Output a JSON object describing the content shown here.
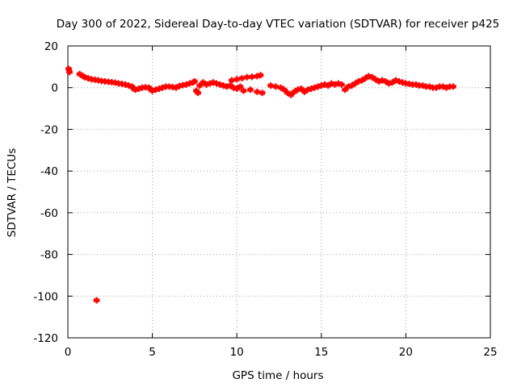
{
  "chart_data": {
    "type": "scatter",
    "title": "Day 300 of 2022, Sidereal Day-to-day VTEC variation (SDTVAR) for receiver p425",
    "xlabel": "GPS time / hours",
    "ylabel": "SDTVAR / TECUs",
    "xlim": [
      0,
      25
    ],
    "ylim": [
      -120,
      20
    ],
    "xticks": [
      0,
      5,
      10,
      15,
      20,
      25
    ],
    "yticks": [
      20,
      0,
      -20,
      -40,
      -60,
      -80,
      -100,
      -120
    ],
    "grid": true,
    "marker_color": "#ff0000",
    "series": [
      {
        "name": "SDTVAR",
        "marker": "plus",
        "points": [
          [
            0.05,
            9.0
          ],
          [
            0.1,
            7.5
          ],
          [
            0.7,
            6.5
          ],
          [
            0.9,
            5.5
          ],
          [
            1.0,
            5.0
          ],
          [
            1.2,
            4.5
          ],
          [
            1.4,
            4.0
          ],
          [
            1.6,
            3.8
          ],
          [
            1.8,
            3.5
          ],
          [
            2.0,
            3.2
          ],
          [
            2.2,
            3.0
          ],
          [
            2.4,
            2.8
          ],
          [
            2.6,
            2.6
          ],
          [
            2.8,
            2.4
          ],
          [
            3.0,
            2.0
          ],
          [
            3.2,
            1.8
          ],
          [
            3.4,
            1.5
          ],
          [
            3.6,
            1.0
          ],
          [
            3.8,
            0.5
          ],
          [
            3.9,
            -0.5
          ],
          [
            4.0,
            -1.0
          ],
          [
            4.2,
            -0.5
          ],
          [
            4.4,
            0.0
          ],
          [
            4.6,
            0.2
          ],
          [
            4.8,
            0.0
          ],
          [
            4.9,
            -0.8
          ],
          [
            5.0,
            -1.5
          ],
          [
            5.2,
            -1.0
          ],
          [
            5.4,
            -0.5
          ],
          [
            5.6,
            0.0
          ],
          [
            5.8,
            0.5
          ],
          [
            6.0,
            0.5
          ],
          [
            6.2,
            0.3
          ],
          [
            6.4,
            0.0
          ],
          [
            6.6,
            0.8
          ],
          [
            6.8,
            1.2
          ],
          [
            7.0,
            1.5
          ],
          [
            7.2,
            2.0
          ],
          [
            7.4,
            2.5
          ],
          [
            7.5,
            3.0
          ],
          [
            7.6,
            -1.5
          ],
          [
            7.7,
            -2.5
          ],
          [
            7.8,
            1.0
          ],
          [
            8.0,
            2.5
          ],
          [
            8.2,
            1.5
          ],
          [
            8.4,
            2.0
          ],
          [
            8.6,
            2.5
          ],
          [
            8.8,
            2.0
          ],
          [
            9.0,
            1.5
          ],
          [
            9.2,
            1.0
          ],
          [
            9.4,
            0.5
          ],
          [
            9.6,
            1.0
          ],
          [
            9.8,
            0.0
          ],
          [
            10.0,
            -0.5
          ],
          [
            10.2,
            0.5
          ],
          [
            10.4,
            -1.5
          ],
          [
            9.7,
            3.5
          ],
          [
            10.0,
            4.0
          ],
          [
            10.3,
            4.5
          ],
          [
            10.6,
            5.0
          ],
          [
            10.9,
            5.2
          ],
          [
            11.2,
            5.5
          ],
          [
            11.4,
            6.0
          ],
          [
            10.8,
            -1.0
          ],
          [
            11.2,
            -2.0
          ],
          [
            11.5,
            -2.5
          ],
          [
            12.0,
            1.0
          ],
          [
            12.3,
            0.5
          ],
          [
            12.6,
            0.0
          ],
          [
            12.8,
            -1.0
          ],
          [
            13.0,
            -2.5
          ],
          [
            13.2,
            -3.5
          ],
          [
            13.4,
            -2.0
          ],
          [
            13.6,
            -1.0
          ],
          [
            13.8,
            -0.5
          ],
          [
            14.0,
            -2.0
          ],
          [
            14.2,
            -1.0
          ],
          [
            14.4,
            -0.5
          ],
          [
            14.6,
            0.0
          ],
          [
            14.8,
            0.5
          ],
          [
            15.0,
            1.0
          ],
          [
            15.2,
            1.5
          ],
          [
            15.4,
            1.0
          ],
          [
            15.6,
            2.0
          ],
          [
            15.8,
            1.5
          ],
          [
            16.0,
            2.0
          ],
          [
            16.2,
            1.5
          ],
          [
            16.4,
            -1.0
          ],
          [
            16.6,
            0.5
          ],
          [
            16.8,
            1.0
          ],
          [
            17.0,
            2.0
          ],
          [
            17.2,
            3.0
          ],
          [
            17.4,
            3.5
          ],
          [
            17.6,
            4.5
          ],
          [
            17.8,
            5.5
          ],
          [
            18.0,
            5.0
          ],
          [
            18.2,
            4.0
          ],
          [
            18.4,
            3.0
          ],
          [
            18.6,
            3.5
          ],
          [
            18.8,
            3.0
          ],
          [
            19.0,
            2.0
          ],
          [
            19.2,
            2.5
          ],
          [
            19.4,
            3.5
          ],
          [
            19.6,
            3.0
          ],
          [
            19.8,
            2.5
          ],
          [
            20.0,
            2.0
          ],
          [
            20.2,
            1.8
          ],
          [
            20.4,
            1.5
          ],
          [
            20.6,
            1.5
          ],
          [
            20.8,
            1.0
          ],
          [
            21.0,
            1.0
          ],
          [
            21.2,
            0.5
          ],
          [
            21.4,
            0.5
          ],
          [
            21.6,
            0.0
          ],
          [
            21.8,
            0.0
          ],
          [
            22.0,
            0.5
          ],
          [
            22.2,
            0.5
          ],
          [
            22.4,
            0.0
          ],
          [
            22.6,
            0.5
          ],
          [
            22.8,
            0.5
          ],
          [
            1.7,
            -102.0
          ]
        ]
      }
    ]
  }
}
